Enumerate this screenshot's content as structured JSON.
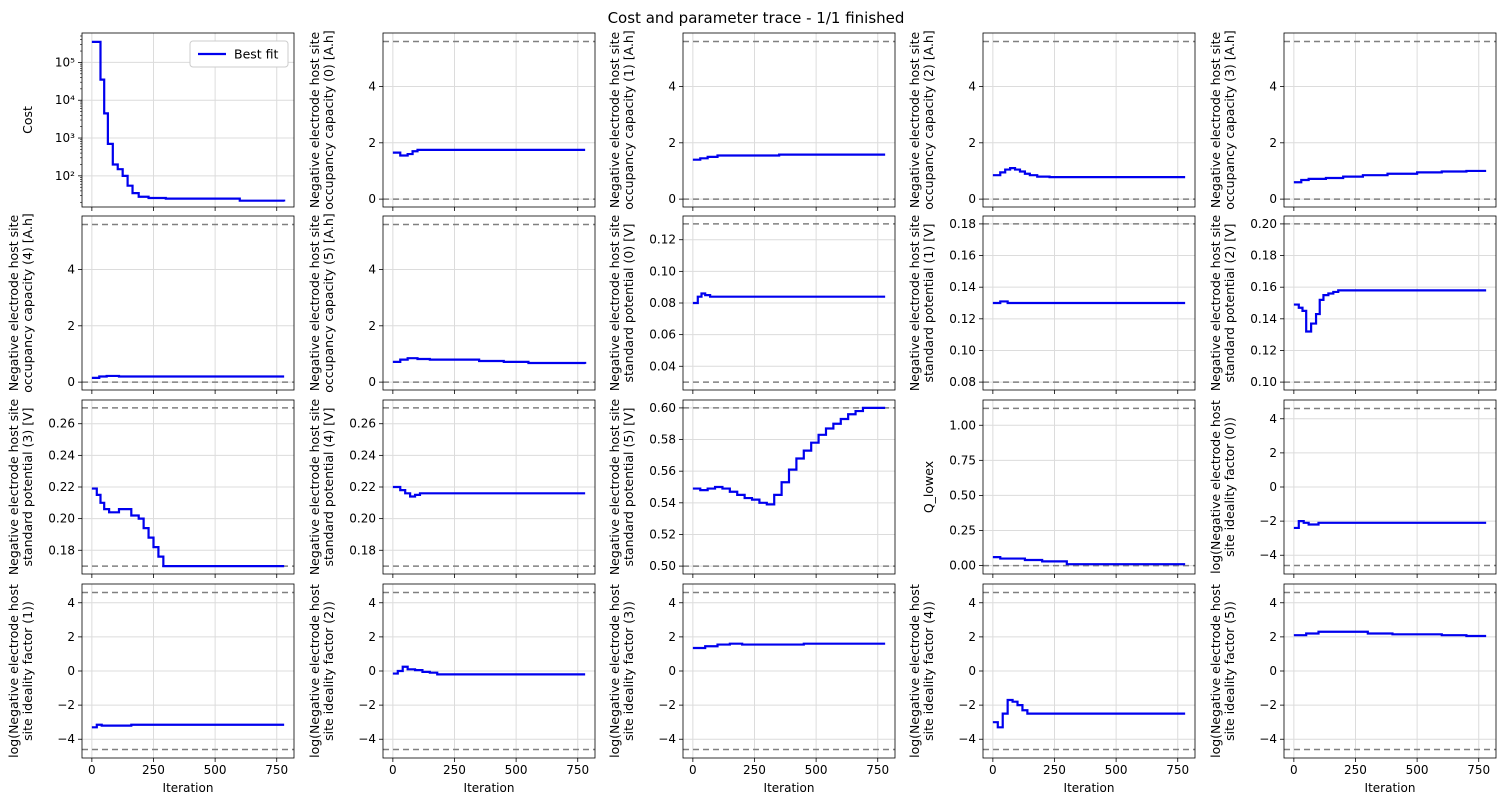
{
  "figure": {
    "title": "Cost and parameter trace - 1/1 finished",
    "x_label": "Iteration",
    "x_ticks": [
      0,
      250,
      500,
      750
    ],
    "xlim": [
      -40,
      820
    ],
    "colors": {
      "trace": "#0000ee",
      "bound": "#808080",
      "grid": "#dcdcdc",
      "axis": "#000000"
    }
  },
  "chart_data": [
    {
      "type": "line",
      "ylabel": [
        "Cost"
      ],
      "scale": "log",
      "ylim": [
        15,
        600000
      ],
      "y_ticks": [
        100,
        1000,
        10000,
        100000
      ],
      "y_tick_labels": [
        "10²",
        "10³",
        "10⁴",
        "10⁵"
      ],
      "legend": {
        "label": "Best fit",
        "position": "top-right"
      },
      "series": [
        {
          "name": "Best fit",
          "x": [
            0,
            20,
            35,
            50,
            65,
            85,
            105,
            125,
            145,
            165,
            190,
            230,
            300,
            500,
            600,
            780
          ],
          "y": [
            350000,
            350000,
            35000,
            4500,
            700,
            200,
            150,
            100,
            55,
            35,
            28,
            26,
            25,
            25,
            22,
            21
          ]
        }
      ]
    },
    {
      "type": "line",
      "ylabel": [
        "Negative electrode host site",
        "occupancy capacity (0) [A.h]"
      ],
      "ylim": [
        -0.28,
        5.9
      ],
      "y_ticks": [
        0,
        2,
        4
      ],
      "bounds": [
        0,
        5.6
      ],
      "series": [
        {
          "name": "Best fit",
          "x": [
            0,
            30,
            60,
            80,
            100,
            140,
            780
          ],
          "y": [
            1.65,
            1.55,
            1.6,
            1.7,
            1.75,
            1.75,
            1.75
          ]
        }
      ]
    },
    {
      "type": "line",
      "ylabel": [
        "Negative electrode host site",
        "occupancy capacity (1) [A.h]"
      ],
      "ylim": [
        -0.28,
        5.9
      ],
      "y_ticks": [
        0,
        2,
        4
      ],
      "bounds": [
        0,
        5.6
      ],
      "series": [
        {
          "name": "Best fit",
          "x": [
            0,
            30,
            60,
            100,
            150,
            350,
            780
          ],
          "y": [
            1.4,
            1.45,
            1.5,
            1.55,
            1.55,
            1.58,
            1.58
          ]
        }
      ]
    },
    {
      "type": "line",
      "ylabel": [
        "Negative electrode host site",
        "occupancy capacity (2) [A.h]"
      ],
      "ylim": [
        -0.28,
        5.9
      ],
      "y_ticks": [
        0,
        2,
        4
      ],
      "bounds": [
        0,
        5.6
      ],
      "series": [
        {
          "name": "Best fit",
          "x": [
            0,
            30,
            50,
            70,
            90,
            110,
            130,
            150,
            180,
            230,
            300,
            780
          ],
          "y": [
            0.85,
            0.95,
            1.05,
            1.1,
            1.05,
            0.98,
            0.9,
            0.85,
            0.8,
            0.78,
            0.78,
            0.78
          ]
        }
      ]
    },
    {
      "type": "line",
      "ylabel": [
        "Negative electrode host site",
        "occupancy capacity (3) [A.h]"
      ],
      "ylim": [
        -0.28,
        5.9
      ],
      "y_ticks": [
        0,
        2,
        4
      ],
      "bounds": [
        0,
        5.6
      ],
      "series": [
        {
          "name": "Best fit",
          "x": [
            0,
            30,
            60,
            130,
            200,
            280,
            380,
            500,
            600,
            700,
            780
          ],
          "y": [
            0.6,
            0.68,
            0.72,
            0.75,
            0.8,
            0.85,
            0.9,
            0.95,
            0.98,
            1.0,
            1.0
          ]
        }
      ]
    },
    {
      "type": "line",
      "ylabel": [
        "Negative electrode host site",
        "occupancy capacity (4) [A.h]"
      ],
      "ylim": [
        -0.28,
        5.9
      ],
      "y_ticks": [
        0,
        2,
        4
      ],
      "bounds": [
        0,
        5.6
      ],
      "series": [
        {
          "name": "Best fit",
          "x": [
            0,
            30,
            60,
            110,
            780
          ],
          "y": [
            0.15,
            0.2,
            0.22,
            0.2,
            0.2
          ]
        }
      ]
    },
    {
      "type": "line",
      "ylabel": [
        "Negative electrode host site",
        "occupancy capacity (5) [A.h]"
      ],
      "ylim": [
        -0.28,
        5.9
      ],
      "y_ticks": [
        0,
        2,
        4
      ],
      "bounds": [
        0,
        5.6
      ],
      "series": [
        {
          "name": "Best fit",
          "x": [
            0,
            30,
            60,
            100,
            150,
            350,
            450,
            550,
            780
          ],
          "y": [
            0.72,
            0.8,
            0.85,
            0.82,
            0.8,
            0.75,
            0.72,
            0.68,
            0.65
          ]
        }
      ]
    },
    {
      "type": "line",
      "ylabel": [
        "Negative electrode host site",
        "standard potential (0) [V]"
      ],
      "ylim": [
        0.025,
        0.135
      ],
      "y_ticks": [
        0.04,
        0.06,
        0.08,
        0.1,
        0.12
      ],
      "y_tick_labels": [
        "0.04",
        "0.06",
        "0.08",
        "0.10",
        "0.12"
      ],
      "bounds": [
        0.03,
        0.13
      ],
      "series": [
        {
          "name": "Best fit",
          "x": [
            0,
            20,
            35,
            50,
            70,
            780
          ],
          "y": [
            0.08,
            0.084,
            0.086,
            0.085,
            0.084,
            0.084
          ]
        }
      ]
    },
    {
      "type": "line",
      "ylabel": [
        "Negative electrode host site",
        "standard potential (1) [V]"
      ],
      "ylim": [
        0.075,
        0.185
      ],
      "y_ticks": [
        0.08,
        0.1,
        0.12,
        0.14,
        0.16,
        0.18
      ],
      "y_tick_labels": [
        "0.08",
        "0.10",
        "0.12",
        "0.14",
        "0.16",
        "0.18"
      ],
      "bounds": [
        0.08,
        0.18
      ],
      "series": [
        {
          "name": "Best fit",
          "x": [
            0,
            30,
            60,
            780
          ],
          "y": [
            0.13,
            0.131,
            0.13,
            0.13
          ]
        }
      ]
    },
    {
      "type": "line",
      "ylabel": [
        "Negative electrode host site",
        "standard potential (2) [V]"
      ],
      "ylim": [
        0.095,
        0.205
      ],
      "y_ticks": [
        0.1,
        0.12,
        0.14,
        0.16,
        0.18,
        0.2
      ],
      "y_tick_labels": [
        "0.10",
        "0.12",
        "0.14",
        "0.16",
        "0.18",
        "0.20"
      ],
      "bounds": [
        0.1,
        0.2
      ],
      "series": [
        {
          "name": "Best fit",
          "x": [
            0,
            20,
            35,
            50,
            70,
            90,
            105,
            120,
            140,
            160,
            180,
            200,
            780
          ],
          "y": [
            0.149,
            0.147,
            0.145,
            0.132,
            0.137,
            0.143,
            0.152,
            0.155,
            0.156,
            0.157,
            0.158,
            0.158,
            0.158
          ]
        }
      ]
    },
    {
      "type": "line",
      "ylabel": [
        "Negative electrode host site",
        "standard potential (3) [V]"
      ],
      "ylim": [
        0.165,
        0.275
      ],
      "y_ticks": [
        0.18,
        0.2,
        0.22,
        0.24,
        0.26
      ],
      "y_tick_labels": [
        "0.18",
        "0.20",
        "0.22",
        "0.24",
        "0.26"
      ],
      "bounds": [
        0.17,
        0.27
      ],
      "series": [
        {
          "name": "Best fit",
          "x": [
            0,
            20,
            35,
            50,
            70,
            110,
            160,
            190,
            210,
            230,
            250,
            270,
            290,
            780
          ],
          "y": [
            0.219,
            0.215,
            0.21,
            0.206,
            0.204,
            0.206,
            0.202,
            0.2,
            0.194,
            0.188,
            0.182,
            0.176,
            0.17,
            0.17
          ]
        }
      ]
    },
    {
      "type": "line",
      "ylabel": [
        "Negative electrode host site",
        "standard potential (4) [V]"
      ],
      "ylim": [
        0.165,
        0.275
      ],
      "y_ticks": [
        0.18,
        0.2,
        0.22,
        0.24,
        0.26
      ],
      "y_tick_labels": [
        "0.18",
        "0.20",
        "0.22",
        "0.24",
        "0.26"
      ],
      "bounds": [
        0.17,
        0.27
      ],
      "series": [
        {
          "name": "Best fit",
          "x": [
            0,
            30,
            50,
            70,
            90,
            110,
            780
          ],
          "y": [
            0.22,
            0.218,
            0.216,
            0.214,
            0.215,
            0.216,
            0.216
          ]
        }
      ]
    },
    {
      "type": "line",
      "ylabel": [
        "Negative electrode host site",
        "standard potential (5) [V]"
      ],
      "ylim": [
        0.495,
        0.605
      ],
      "y_ticks": [
        0.5,
        0.52,
        0.54,
        0.56,
        0.58,
        0.6
      ],
      "y_tick_labels": [
        "0.50",
        "0.52",
        "0.54",
        "0.56",
        "0.58",
        "0.60"
      ],
      "bounds": [
        0.5,
        0.6
      ],
      "series": [
        {
          "name": "Best fit",
          "x": [
            0,
            30,
            60,
            90,
            120,
            150,
            180,
            210,
            240,
            270,
            300,
            330,
            360,
            390,
            420,
            450,
            480,
            510,
            540,
            570,
            600,
            630,
            660,
            690,
            720,
            780
          ],
          "y": [
            0.549,
            0.548,
            0.549,
            0.55,
            0.549,
            0.547,
            0.545,
            0.543,
            0.542,
            0.54,
            0.539,
            0.545,
            0.553,
            0.561,
            0.568,
            0.573,
            0.578,
            0.583,
            0.587,
            0.59,
            0.593,
            0.596,
            0.598,
            0.6,
            0.6,
            0.6
          ]
        }
      ]
    },
    {
      "type": "line",
      "ylabel": [
        "Q_lowex"
      ],
      "ylim": [
        -0.06,
        1.18
      ],
      "y_ticks": [
        0,
        0.25,
        0.5,
        0.75,
        1
      ],
      "y_tick_labels": [
        "0.00",
        "0.25",
        "0.50",
        "0.75",
        "1.00"
      ],
      "bounds": [
        0,
        1.12
      ],
      "series": [
        {
          "name": "Best fit",
          "x": [
            0,
            30,
            130,
            200,
            300,
            780
          ],
          "y": [
            0.06,
            0.05,
            0.04,
            0.03,
            0.01,
            0.01
          ]
        }
      ]
    },
    {
      "type": "line",
      "ylabel": [
        "log(Negative electrode host",
        "site ideality factor (0))"
      ],
      "ylim": [
        -5.1,
        5.1
      ],
      "y_ticks": [
        -4,
        -2,
        0,
        2,
        4
      ],
      "y_tick_labels": [
        "−4",
        "−2",
        "0",
        "2",
        "4"
      ],
      "bounds": [
        -4.6,
        4.6
      ],
      "series": [
        {
          "name": "Best fit",
          "x": [
            0,
            20,
            40,
            60,
            100,
            780
          ],
          "y": [
            -2.4,
            -2.0,
            -2.1,
            -2.2,
            -2.1,
            -2.1
          ]
        }
      ]
    },
    {
      "type": "line",
      "ylabel": [
        "log(Negative electrode host",
        "site ideality factor (1))"
      ],
      "ylim": [
        -5.1,
        5.1
      ],
      "y_ticks": [
        -4,
        -2,
        0,
        2,
        4
      ],
      "y_tick_labels": [
        "−4",
        "−2",
        "0",
        "2",
        "4"
      ],
      "bounds": [
        -4.6,
        4.6
      ],
      "series": [
        {
          "name": "Best fit",
          "x": [
            0,
            20,
            40,
            160,
            780
          ],
          "y": [
            -3.3,
            -3.15,
            -3.2,
            -3.15,
            -3.15
          ]
        }
      ]
    },
    {
      "type": "line",
      "ylabel": [
        "log(Negative electrode host",
        "site ideality factor (2))"
      ],
      "ylim": [
        -5.1,
        5.1
      ],
      "y_ticks": [
        -4,
        -2,
        0,
        2,
        4
      ],
      "y_tick_labels": [
        "−4",
        "−2",
        "0",
        "2",
        "4"
      ],
      "bounds": [
        -4.6,
        4.6
      ],
      "series": [
        {
          "name": "Best fit",
          "x": [
            0,
            20,
            40,
            60,
            90,
            120,
            150,
            180,
            780
          ],
          "y": [
            -0.15,
            0.0,
            0.25,
            0.1,
            0.05,
            -0.05,
            -0.1,
            -0.2,
            -0.2
          ]
        }
      ]
    },
    {
      "type": "line",
      "ylabel": [
        "log(Negative electrode host",
        "site ideality factor (3))"
      ],
      "ylim": [
        -5.1,
        5.1
      ],
      "y_ticks": [
        -4,
        -2,
        0,
        2,
        4
      ],
      "y_tick_labels": [
        "−4",
        "−2",
        "0",
        "2",
        "4"
      ],
      "bounds": [
        -4.6,
        4.6
      ],
      "series": [
        {
          "name": "Best fit",
          "x": [
            0,
            50,
            100,
            150,
            200,
            450,
            780
          ],
          "y": [
            1.35,
            1.45,
            1.55,
            1.6,
            1.55,
            1.6,
            1.6
          ]
        }
      ]
    },
    {
      "type": "line",
      "ylabel": [
        "log(Negative electrode host",
        "site ideality factor (4))"
      ],
      "ylim": [
        -5.1,
        5.1
      ],
      "y_ticks": [
        -4,
        -2,
        0,
        2,
        4
      ],
      "y_tick_labels": [
        "−4",
        "−2",
        "0",
        "2",
        "4"
      ],
      "bounds": [
        -4.6,
        4.6
      ],
      "series": [
        {
          "name": "Best fit",
          "x": [
            0,
            20,
            40,
            60,
            80,
            100,
            120,
            140,
            780
          ],
          "y": [
            -3.0,
            -3.3,
            -2.5,
            -1.7,
            -1.8,
            -2.0,
            -2.3,
            -2.5,
            -2.5
          ]
        }
      ]
    },
    {
      "type": "line",
      "ylabel": [
        "log(Negative electrode host",
        "site ideality factor (5))"
      ],
      "ylim": [
        -5.1,
        5.1
      ],
      "y_ticks": [
        -4,
        -2,
        0,
        2,
        4
      ],
      "y_tick_labels": [
        "−4",
        "−2",
        "0",
        "2",
        "4"
      ],
      "bounds": [
        -4.6,
        4.6
      ],
      "series": [
        {
          "name": "Best fit",
          "x": [
            0,
            50,
            100,
            200,
            300,
            400,
            600,
            700,
            780
          ],
          "y": [
            2.1,
            2.2,
            2.3,
            2.3,
            2.2,
            2.15,
            2.1,
            2.05,
            2.05
          ]
        }
      ]
    }
  ]
}
